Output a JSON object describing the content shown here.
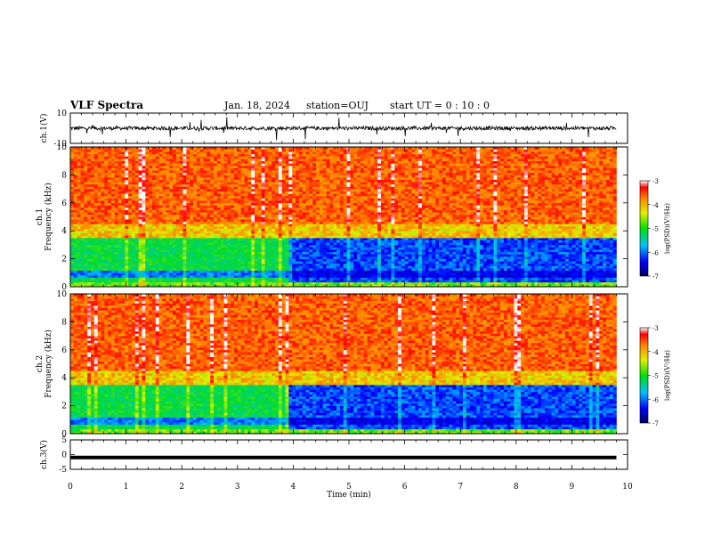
{
  "header": {
    "title": "VLF Spectra",
    "date": "Jan. 18, 2024",
    "station": "station=OUJ",
    "start": "start  UT =   0  : 10 : 0"
  },
  "colors": {
    "trace": "#000000",
    "spec_low": "#000080",
    "spec_mid": "#00c000",
    "spec_high": "#ff0000"
  },
  "chart_data": [
    {
      "type": "line",
      "name": "ch1-waveform",
      "ylabel": "ch.1(V)",
      "ylim": [
        -10,
        10
      ],
      "yticks": [
        "10",
        "-10"
      ],
      "xlim": [
        0,
        10
      ]
    },
    {
      "type": "heatmap",
      "name": "ch1-spectrogram",
      "ylabel": "ch.1\nFrequency  (kHz)",
      "ylabel_lines": [
        "ch.1",
        "Frequency  (kHz)"
      ],
      "ylim": [
        0,
        10
      ],
      "yticks": [
        "0",
        "2",
        "4",
        "6",
        "8",
        "10"
      ],
      "xlim": [
        0,
        10
      ],
      "colorbar": {
        "label": "log(PSD)(V²/Hz)",
        "range": [
          -7,
          -3
        ],
        "ticks": [
          "-3",
          "-4",
          "-5",
          "-6",
          "-7"
        ]
      }
    },
    {
      "type": "heatmap",
      "name": "ch2-spectrogram",
      "ylabel_lines": [
        "ch.2",
        "Frequency  (kHz)"
      ],
      "ylim": [
        0,
        10
      ],
      "yticks": [
        "0",
        "2",
        "4",
        "6",
        "8",
        "10"
      ],
      "xlim": [
        0,
        10
      ],
      "colorbar": {
        "label": "log(PSD)(V²/Hz)",
        "range": [
          -7,
          -3
        ],
        "ticks": [
          "-3",
          "-4",
          "-5",
          "-6",
          "-7"
        ]
      }
    },
    {
      "type": "line",
      "name": "ch3-waveform",
      "ylabel": "ch.3(V)",
      "ylim": [
        -5,
        5
      ],
      "yticks": [
        "5",
        "0",
        "-5"
      ],
      "xlim": [
        0,
        10
      ],
      "series": [
        {
          "x": [
            0,
            9.8
          ],
          "y": [
            -1,
            -1
          ]
        }
      ]
    }
  ],
  "xaxis": {
    "label": "Time  (min)",
    "ticks": [
      "0",
      "1",
      "2",
      "3",
      "4",
      "5",
      "6",
      "7",
      "8",
      "9",
      "10"
    ]
  }
}
